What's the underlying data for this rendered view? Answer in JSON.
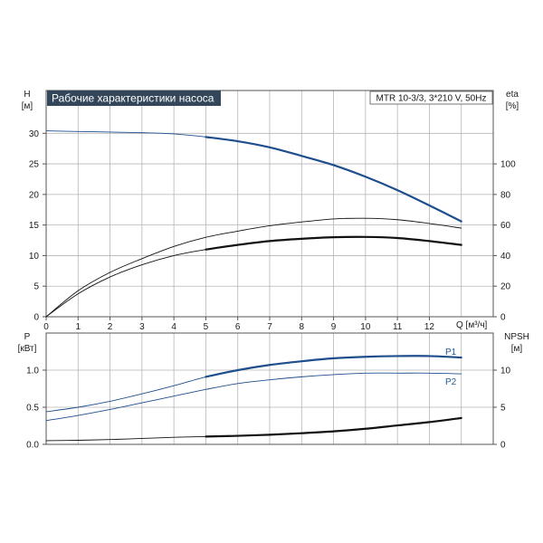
{
  "title": "Рабочие характеристики насоса",
  "info": "MTR 10-3/3, 3*210 V, 50Hz",
  "colors": {
    "blue": "#1f4e8c",
    "black": "#111111",
    "grid": "#b5b5b5",
    "title_bg": "#33465a"
  },
  "chart_data": [
    {
      "type": "line",
      "name": "upper",
      "ylabel_left": [
        "H",
        "[м]"
      ],
      "ylabel_right": [
        "eta",
        "[%]"
      ],
      "xlabel": "Q [м³/ч]",
      "xlim": [
        0,
        14
      ],
      "x_ticks": [
        0,
        1,
        2,
        3,
        4,
        5,
        6,
        7,
        8,
        9,
        10,
        11,
        12
      ],
      "ylim_left": [
        0,
        37
      ],
      "y_ticks_left": [
        0,
        5,
        10,
        15,
        20,
        25,
        30
      ],
      "ylim_right": [
        0,
        148
      ],
      "y_ticks_right": [
        0,
        20,
        40,
        60,
        80,
        100
      ],
      "grid": true,
      "series": [
        {
          "axis": "left",
          "color": "blue",
          "duty_from": 5,
          "points": [
            [
              0,
              30.4
            ],
            [
              1,
              30.3
            ],
            [
              2,
              30.2
            ],
            [
              3,
              30.1
            ],
            [
              4,
              29.9
            ],
            [
              5,
              29.4
            ],
            [
              6,
              28.7
            ],
            [
              7,
              27.7
            ],
            [
              8,
              26.3
            ],
            [
              9,
              24.8
            ],
            [
              10,
              22.9
            ],
            [
              11,
              20.7
            ],
            [
              12,
              18.2
            ],
            [
              13,
              15.6
            ]
          ]
        },
        {
          "axis": "right",
          "color": "black",
          "duty_from": 14,
          "points": [
            [
              0,
              0
            ],
            [
              1,
              17
            ],
            [
              2,
              29
            ],
            [
              3,
              38
            ],
            [
              4,
              46
            ],
            [
              5,
              52
            ],
            [
              6,
              56
            ],
            [
              7,
              59.5
            ],
            [
              8,
              62
            ],
            [
              9,
              64
            ],
            [
              10,
              64.4
            ],
            [
              11,
              63.5
            ],
            [
              12,
              61
            ],
            [
              13,
              58
            ]
          ]
        },
        {
          "axis": "right",
          "color": "black",
          "duty_from": 5,
          "points": [
            [
              0,
              0
            ],
            [
              1,
              15
            ],
            [
              2,
              26
            ],
            [
              3,
              34
            ],
            [
              4,
              40
            ],
            [
              5,
              44
            ],
            [
              6,
              47
            ],
            [
              7,
              49.5
            ],
            [
              8,
              51
            ],
            [
              9,
              52
            ],
            [
              10,
              52.2
            ],
            [
              11,
              51.5
            ],
            [
              12,
              49.5
            ],
            [
              13,
              47
            ]
          ]
        }
      ]
    },
    {
      "type": "line",
      "name": "lower",
      "ylabel_left": [
        "P",
        "[кВт]"
      ],
      "ylabel_right": [
        "NPSH",
        "[м]"
      ],
      "xlim": [
        0,
        14
      ],
      "ylim_left": [
        0,
        1.5
      ],
      "y_ticks_left": [
        0.0,
        0.5,
        1.0
      ],
      "ylim_right": [
        0,
        15
      ],
      "y_ticks_right": [
        0,
        5,
        10
      ],
      "grid": true,
      "series": [
        {
          "name": "P1",
          "axis": "left",
          "color": "blue",
          "duty_from": 5,
          "points": [
            [
              0,
              0.44
            ],
            [
              1,
              0.5
            ],
            [
              2,
              0.58
            ],
            [
              3,
              0.68
            ],
            [
              4,
              0.79
            ],
            [
              5,
              0.91
            ],
            [
              6,
              1.0
            ],
            [
              7,
              1.07
            ],
            [
              8,
              1.12
            ],
            [
              9,
              1.16
            ],
            [
              10,
              1.18
            ],
            [
              11,
              1.19
            ],
            [
              12,
              1.19
            ],
            [
              13,
              1.17
            ]
          ]
        },
        {
          "name": "P2",
          "axis": "left",
          "color": "blue",
          "duty_from": 14,
          "points": [
            [
              0,
              0.32
            ],
            [
              1,
              0.39
            ],
            [
              2,
              0.47
            ],
            [
              3,
              0.56
            ],
            [
              4,
              0.65
            ],
            [
              5,
              0.74
            ],
            [
              6,
              0.82
            ],
            [
              7,
              0.87
            ],
            [
              8,
              0.91
            ],
            [
              9,
              0.94
            ],
            [
              10,
              0.96
            ],
            [
              11,
              0.96
            ],
            [
              12,
              0.96
            ],
            [
              13,
              0.95
            ]
          ]
        },
        {
          "axis": "right",
          "color": "black",
          "duty_from": 5,
          "points": [
            [
              0,
              0.5
            ],
            [
              1,
              0.55
            ],
            [
              2,
              0.65
            ],
            [
              3,
              0.8
            ],
            [
              4,
              0.95
            ],
            [
              5,
              1.05
            ],
            [
              6,
              1.15
            ],
            [
              7,
              1.3
            ],
            [
              8,
              1.5
            ],
            [
              9,
              1.75
            ],
            [
              10,
              2.1
            ],
            [
              11,
              2.55
            ],
            [
              12,
              3.0
            ],
            [
              13,
              3.55
            ]
          ]
        }
      ]
    }
  ]
}
